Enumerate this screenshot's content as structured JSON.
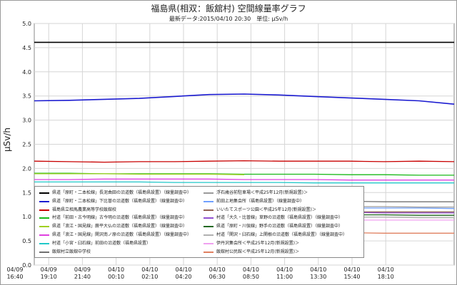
{
  "page": {
    "title": "福島県(相双：飯舘村) 空間線量率グラフ",
    "subtitle": "最新データ:2015/04/10 20:30　単位: μSv/h"
  },
  "chart_data": {
    "type": "line",
    "title": "福島県(相双：飯舘村) 空間線量率グラフ",
    "subtitle": "最新データ:2015/04/10 20:30　単位: μSv/h",
    "ylabel": "μSv/h",
    "ylim": [
      0,
      5.0
    ],
    "yticks": [
      "0.0",
      "0.5",
      "1.0",
      "1.5",
      "2.0",
      "2.5",
      "3.0",
      "3.5",
      "4.0",
      "4.5",
      "5.0"
    ],
    "xticks": [
      {
        "date": "04/09",
        "time": "16:40"
      },
      {
        "date": "04/09",
        "time": "19:10"
      },
      {
        "date": "04/09",
        "time": "21:40"
      },
      {
        "date": "04/10",
        "time": "00:10"
      },
      {
        "date": "04/10",
        "time": "02:10"
      },
      {
        "date": "04/10",
        "time": "04:20"
      },
      {
        "date": "04/10",
        "time": "06:30"
      },
      {
        "date": "04/10",
        "time": "08:50"
      },
      {
        "date": "04/10",
        "time": "11:00"
      },
      {
        "date": "04/10",
        "time": "13:30"
      },
      {
        "date": "04/10",
        "time": "15:40"
      },
      {
        "date": "04/10",
        "time": "18:10"
      }
    ],
    "grid": true,
    "legend_position": "bottom-left",
    "series": [
      {
        "name": "県道「原町・二本松線」長泥曲田の沿道敷（福島県設置）（線量調査中）",
        "color": "#000000",
        "values": [
          4.61,
          4.61,
          4.61,
          4.61,
          4.61,
          4.61,
          4.61,
          4.61,
          4.61,
          4.61,
          4.61,
          4.61,
          4.61
        ]
      },
      {
        "name": "県道「原町・二本松線」下比曽の沿道敷（福島県設置）（線量調査中）",
        "color": "#1a1ad0",
        "values": [
          3.4,
          3.41,
          3.43,
          3.45,
          3.49,
          3.53,
          3.54,
          3.52,
          3.49,
          3.46,
          3.43,
          3.4,
          3.33
        ]
      },
      {
        "name": "福島県立相馬農業高等学校飯舘校",
        "color": "#c80000",
        "values": [
          2.15,
          2.14,
          2.13,
          2.14,
          2.14,
          2.15,
          2.16,
          2.15,
          2.15,
          2.15,
          2.14,
          2.15,
          2.14
        ]
      },
      {
        "name": "村道「前田・古今明線」古今明の沿道敷（福島県設置）（線量調査中）",
        "color": "#18b818",
        "values": [
          1.9,
          1.9,
          1.89,
          1.89,
          1.89,
          1.89,
          1.88,
          1.88,
          1.88,
          1.87,
          1.87,
          1.86,
          1.86
        ]
      },
      {
        "name": "県道「浪江・国見線」蕨平大仏の沿道敷（福島県設置）（線量調査中）",
        "color": "#a0d020",
        "values": [
          1.89,
          1.89,
          1.89,
          1.88,
          1.88,
          1.88,
          1.87
        ]
      },
      {
        "name": "県道「浪江・国見線」関沢南ノ原の沿道敷（福島県設置）（線量調査中）",
        "color": "#e040e0",
        "values": [
          1.77,
          1.77,
          1.78,
          1.78,
          1.78,
          1.78,
          1.77,
          1.77,
          1.77,
          1.76,
          1.76,
          1.76,
          1.76
        ]
      },
      {
        "name": "村道「小宮・臼石線」前田の沿道敷（福島県設置）",
        "color": "#20c8c8",
        "values": [
          1.72,
          1.72,
          1.72,
          1.72,
          1.71,
          1.71,
          1.71,
          1.71,
          1.7,
          1.7,
          1.7,
          1.7,
          1.7
        ]
      },
      {
        "name": "飯舘村立飯舘中学校",
        "color": "#707070",
        "values": [
          1.34,
          1.33,
          1.33,
          1.33,
          1.33,
          1.33,
          1.32,
          1.32,
          1.32,
          1.32,
          1.31,
          1.31,
          1.31
        ]
      },
      {
        "name": "浮石歳谷前駐車場＜平成25年12月(新規設置)＞",
        "color": "#9a9a9a",
        "values": [
          1.23,
          1.22,
          1.22,
          1.22,
          1.22,
          1.22,
          1.21,
          1.21,
          1.21,
          1.21,
          1.21,
          1.2,
          1.2
        ]
      },
      {
        "name": "前田上地集会所（福島県設置）（線量調査中）",
        "color": "#70a0ff",
        "values": [
          1.2,
          1.2,
          1.19,
          1.19,
          1.19,
          1.19,
          1.19,
          1.18,
          1.18,
          1.18,
          1.18,
          1.18,
          1.17
        ]
      },
      {
        "name": "いいたてスポーツ公園＜平成25年12月(新規設置)＞",
        "color": "#906050",
        "values": [
          1.12,
          1.12,
          1.12,
          1.11,
          1.11,
          1.11,
          1.11,
          1.11,
          1.1,
          1.1,
          1.1,
          1.1,
          1.1
        ]
      },
      {
        "name": "村道「大久・比曽線」草野の沿道敷（福島県設置）（線量調査中）",
        "color": "#9050d0",
        "values": [
          1.1,
          1.1,
          1.1,
          1.1,
          1.09,
          1.09,
          1.09,
          1.09,
          1.09,
          1.09,
          1.08,
          1.08,
          1.08
        ]
      },
      {
        "name": "県道「原町・川俣線」野手の沿道敷（福島県設置）（線量調査中）",
        "color": "#206820",
        "values": [
          1.05,
          1.05,
          1.05,
          1.05,
          1.05,
          1.04,
          1.04,
          1.04,
          1.04,
          1.04,
          1.04,
          1.03,
          1.03
        ]
      },
      {
        "name": "村道「関沢・臼石線」上関根の沿道敷（福島県設置）（線量調査中）",
        "color": "#b0b0b0",
        "values": [
          1.0,
          1.0,
          1.0,
          1.0,
          1.0,
          0.99,
          0.99,
          0.99,
          0.99,
          0.99,
          0.99,
          0.98,
          0.98
        ]
      },
      {
        "name": "伊丹沢集会所＜平成25年12月(新規設置)＞",
        "color": "#f0a0f0",
        "values": [
          0.95,
          0.95,
          0.95,
          0.95,
          0.94,
          0.94,
          0.94,
          0.94,
          0.94,
          0.93,
          0.93,
          0.93,
          0.93
        ]
      },
      {
        "name": "飯舘村公民館＜平成25年12月(新規設置)＞",
        "color": "#e08060",
        "values": [
          0.68,
          0.68,
          0.68,
          0.67,
          0.67,
          0.67,
          0.67,
          0.67,
          0.67,
          0.67,
          0.66,
          0.66,
          0.66
        ]
      }
    ]
  }
}
